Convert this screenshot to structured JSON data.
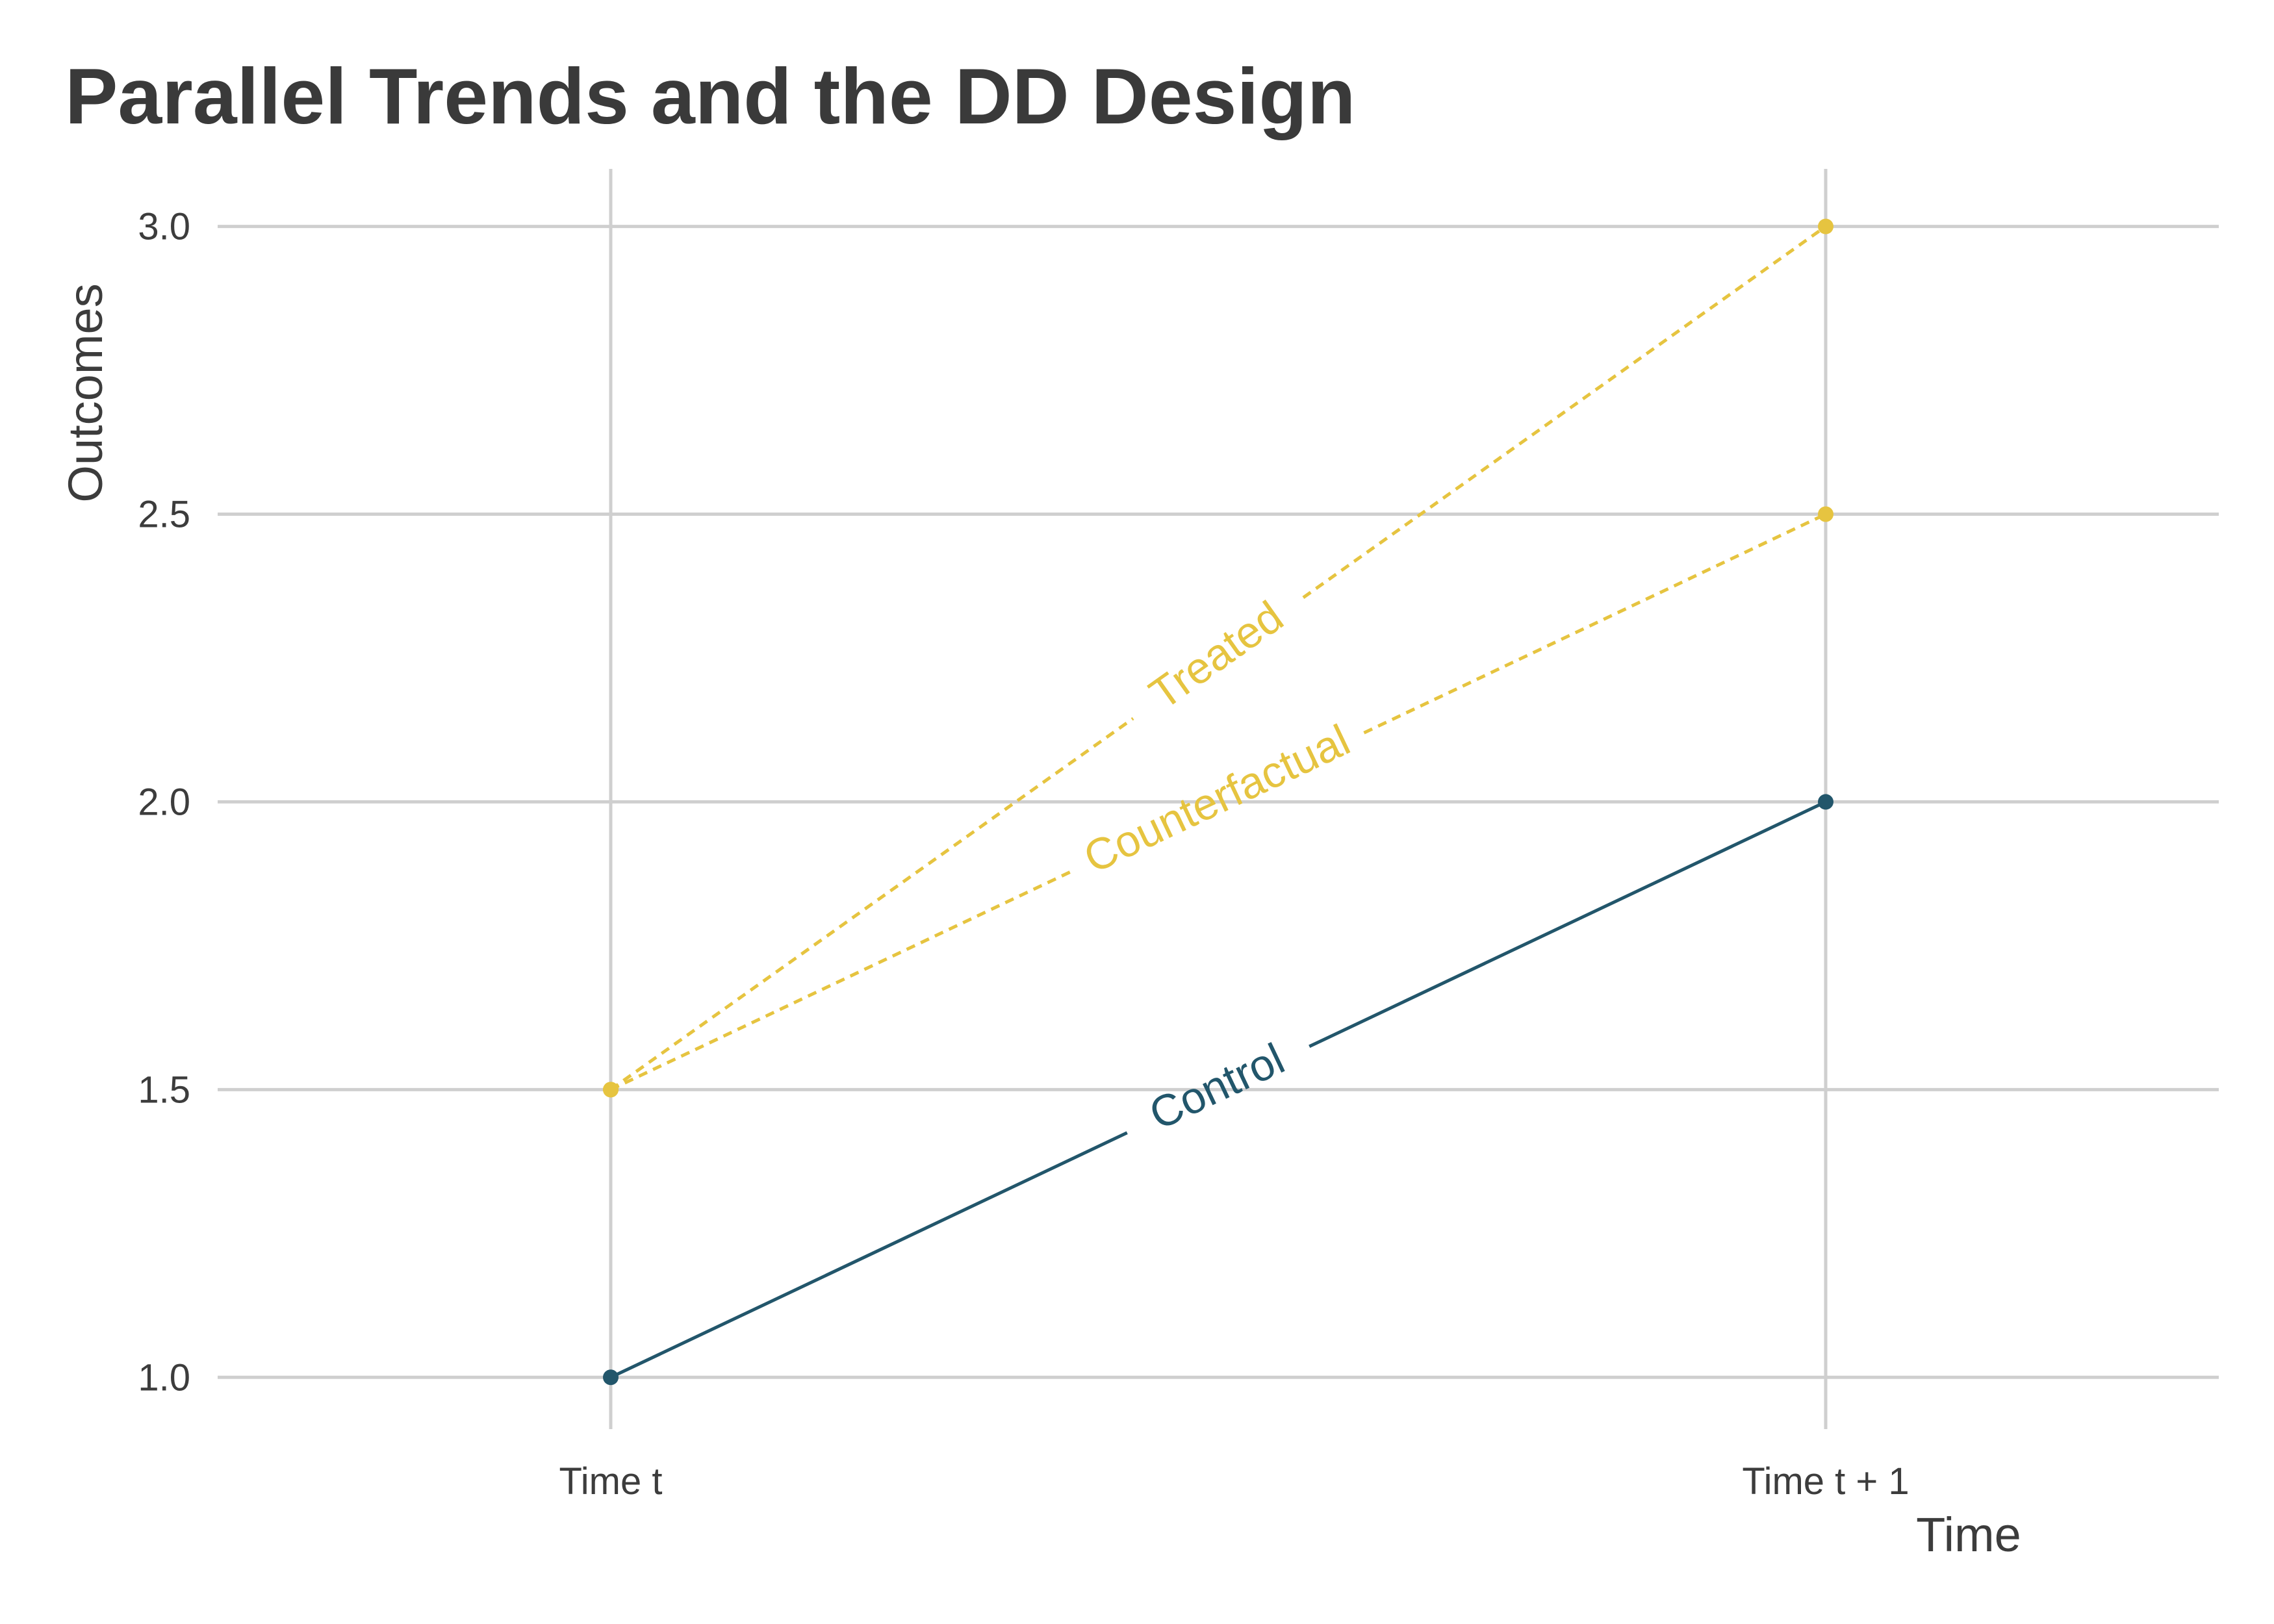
{
  "chart_data": {
    "type": "line",
    "title": "Parallel Trends and the DD Design",
    "xlabel": "Time",
    "ylabel": "Outcomes",
    "categories": [
      "Time t",
      "Time t + 1"
    ],
    "ylim": [
      0.91,
      3.1
    ],
    "yticks": [
      1.0,
      1.5,
      2.0,
      2.5,
      3.0
    ],
    "ytick_labels": [
      "1.0",
      "1.5",
      "2.0",
      "2.5",
      "3.0"
    ],
    "grid": true,
    "legend": "none (inline line labels)",
    "series": [
      {
        "name": "Control",
        "values": [
          1.0,
          2.0
        ],
        "color": "#22566b",
        "style": "solid"
      },
      {
        "name": "Treated",
        "values": [
          1.5,
          3.0
        ],
        "color": "#e6c440",
        "style": "dashed"
      },
      {
        "name": "Counterfactual",
        "values": [
          1.5,
          2.5
        ],
        "color": "#e6c440",
        "style": "dashed"
      }
    ]
  }
}
